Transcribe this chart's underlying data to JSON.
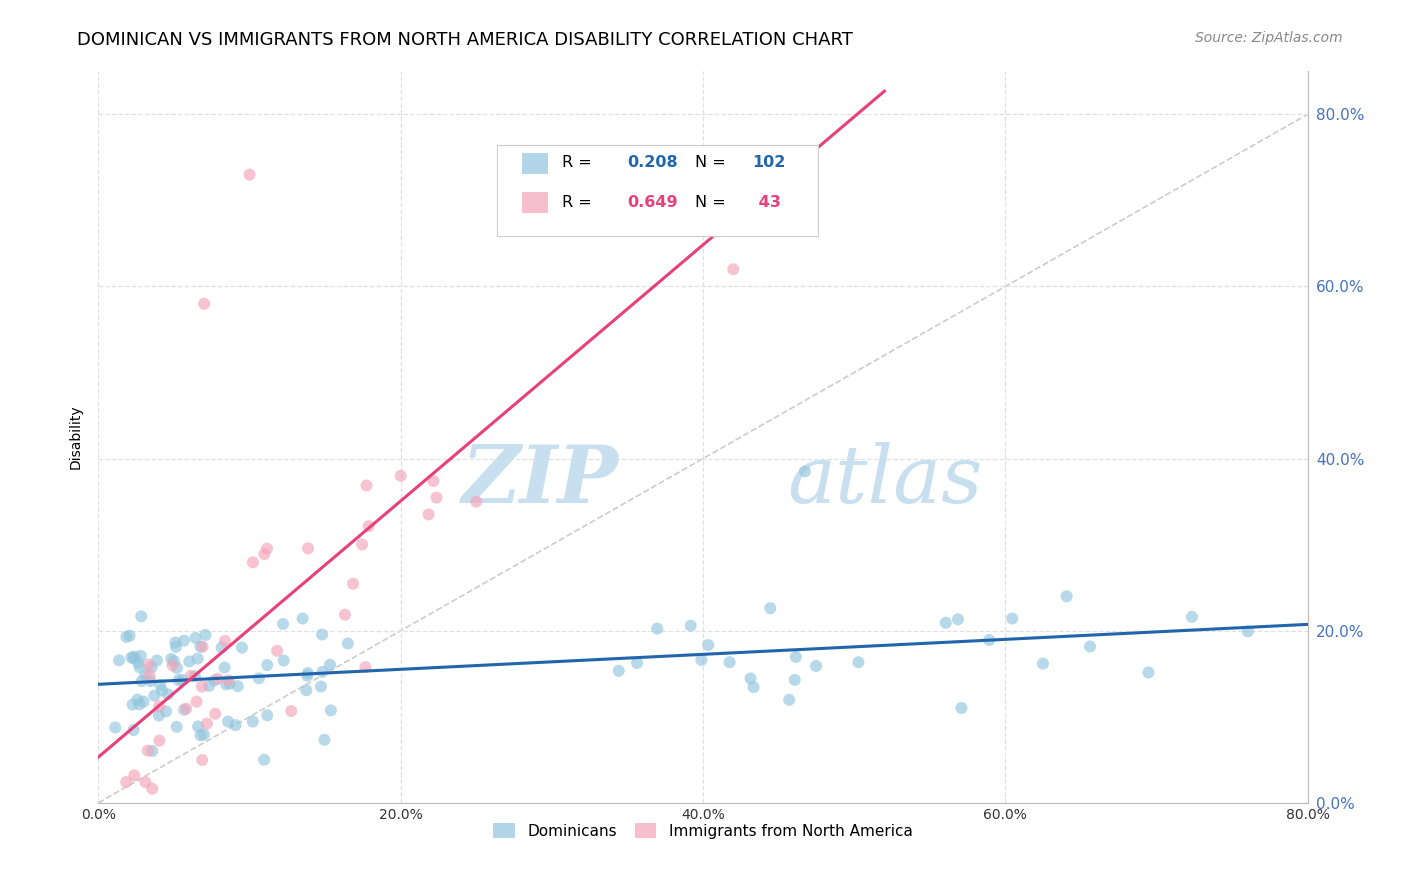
{
  "title": "DOMINICAN VS IMMIGRANTS FROM NORTH AMERICA DISABILITY CORRELATION CHART",
  "source": "Source: ZipAtlas.com",
  "ylabel": "Disability",
  "xmin": 0.0,
  "xmax": 0.8,
  "ymin": 0.0,
  "ymax": 0.85,
  "blue_R": 0.208,
  "blue_N": 102,
  "pink_R": 0.649,
  "pink_N": 43,
  "blue_color": "#92c5de",
  "pink_color": "#f4a4b8",
  "blue_line_color": "#2166ac",
  "pink_line_color": "#e8417a",
  "diagonal_color": "#cccccc",
  "watermark_zip": "ZIP",
  "watermark_atlas": "atlas",
  "watermark_color": "#daeaf6",
  "title_fontsize": 13,
  "source_fontsize": 10,
  "axis_label_fontsize": 10,
  "right_axis_color": "#4472c4",
  "grid_color": "#e0e0e0",
  "legend_edge_color": "#cccccc"
}
